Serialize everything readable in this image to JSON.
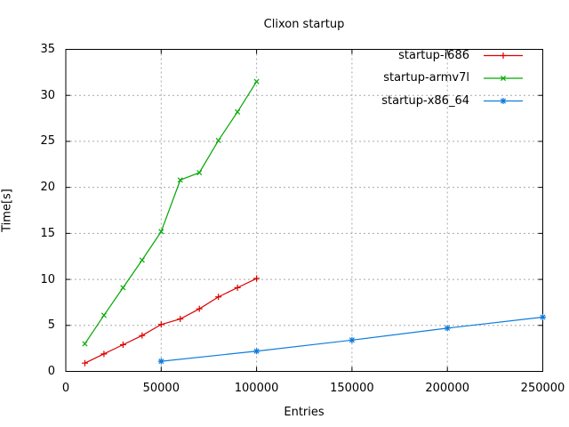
{
  "window": {
    "background": "#ffffff"
  },
  "chart_data": {
    "type": "line",
    "title": "Clixon startup",
    "xlabel": "Entries",
    "ylabel": "Time[s]",
    "xlim": [
      0,
      250000
    ],
    "ylim": [
      0,
      35
    ],
    "grid": true,
    "legend_position": "top-right-inside",
    "x_ticks": [
      0,
      50000,
      100000,
      150000,
      200000,
      250000
    ],
    "x_tick_labels": [
      "0",
      "50000",
      "100000",
      "150000",
      "200000",
      "250000"
    ],
    "y_ticks": [
      0,
      5,
      10,
      15,
      20,
      25,
      30,
      35
    ],
    "y_tick_labels": [
      "0",
      "5",
      "10",
      "15",
      "20",
      "25",
      "30",
      "35"
    ],
    "colors": {
      "border": "#000000",
      "grid": "#a8a8a8",
      "text": "#000000"
    },
    "series": [
      {
        "name": "startup-i686",
        "color": "#dd0000",
        "marker": "plus",
        "x": [
          10000,
          20000,
          30000,
          40000,
          50000,
          60000,
          70000,
          80000,
          90000,
          100000
        ],
        "y": [
          0.9,
          1.9,
          2.9,
          3.9,
          5.1,
          5.7,
          6.8,
          8.1,
          9.1,
          10.1
        ]
      },
      {
        "name": "startup-armv7l",
        "color": "#00a800",
        "marker": "cross",
        "x": [
          10000,
          20000,
          30000,
          40000,
          50000,
          60000,
          70000,
          80000,
          90000,
          100000
        ],
        "y": [
          3.0,
          6.1,
          9.1,
          12.1,
          15.2,
          20.8,
          21.6,
          25.1,
          28.2,
          31.5
        ]
      },
      {
        "name": "startup-x86_64",
        "color": "#0f7bdc",
        "marker": "star",
        "x": [
          50000,
          100000,
          150000,
          200000,
          250000
        ],
        "y": [
          1.1,
          2.2,
          3.4,
          4.7,
          5.9
        ]
      }
    ]
  }
}
